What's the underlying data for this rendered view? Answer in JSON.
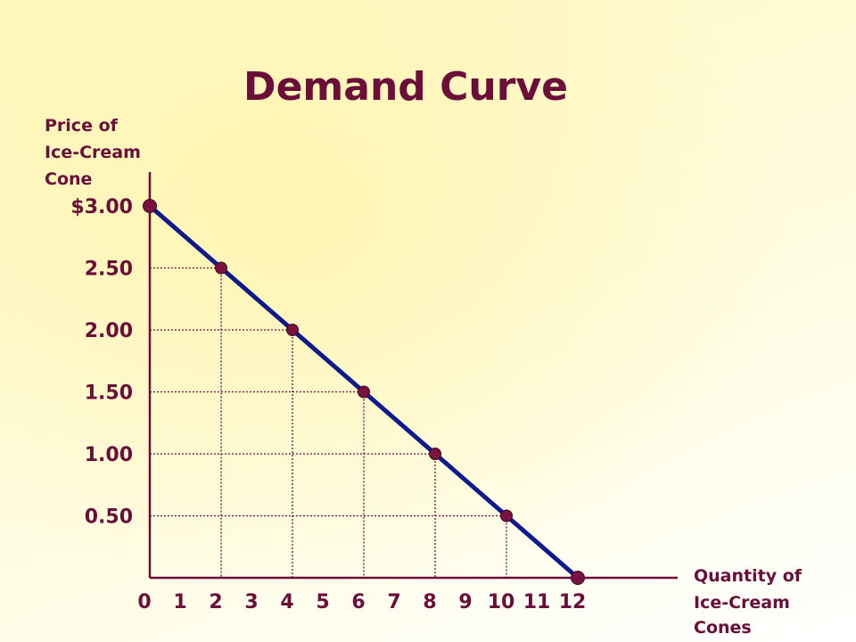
{
  "chart_data": {
    "type": "line",
    "title": "Demand Curve",
    "ylabel_lines": [
      "Price of",
      "Ice-Cream",
      "Cone"
    ],
    "xlabel_lines": [
      "Quantity of",
      "Ice-Cream",
      "Cones"
    ],
    "x_ticks": [
      "0",
      "1",
      "2",
      "3",
      "4",
      "5",
      "6",
      "7",
      "8",
      "9",
      "10",
      "11",
      "12"
    ],
    "y_ticks": [
      {
        "value": 3.0,
        "label": "$3.00"
      },
      {
        "value": 2.5,
        "label": "2.50"
      },
      {
        "value": 2.0,
        "label": "2.00"
      },
      {
        "value": 1.5,
        "label": "1.50"
      },
      {
        "value": 1.0,
        "label": "1.00"
      },
      {
        "value": 0.5,
        "label": "0.50"
      }
    ],
    "xlim": [
      0,
      12
    ],
    "ylim": [
      0,
      3.0
    ],
    "series": [
      {
        "x": [
          0,
          2,
          4,
          6,
          8,
          10,
          12
        ],
        "y": [
          3.0,
          2.5,
          2.0,
          1.5,
          1.0,
          0.5,
          0.0
        ]
      }
    ],
    "guide_lines": true,
    "colors": {
      "text": "#6b0f3a",
      "axis": "#6b0f3a",
      "line": "#0f1a8c",
      "points": "#7a1240"
    }
  }
}
